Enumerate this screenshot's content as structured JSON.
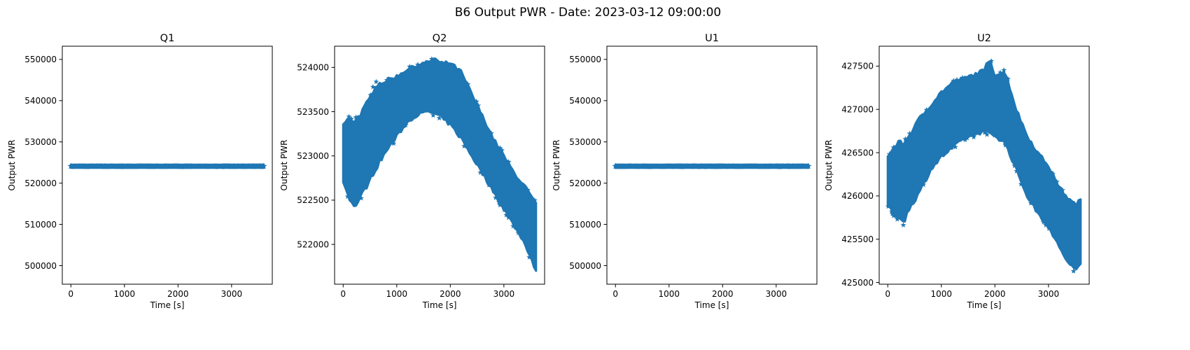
{
  "figure": {
    "suptitle": "B6 Output PWR - Date: 2023-03-12 09:00:00",
    "accent_color": "#1f77b4"
  },
  "chart_data": [
    {
      "type": "scatter",
      "title": "Q1",
      "xlabel": "Time [s]",
      "ylabel": "Output PWR",
      "marker": "star",
      "xlim": [
        -160,
        3760
      ],
      "ylim": [
        495500,
        553200
      ],
      "xticks": [
        0,
        1000,
        2000,
        3000
      ],
      "yticks": [
        500000,
        510000,
        520000,
        530000,
        540000,
        550000
      ],
      "series": [
        {
          "x": [
            0,
            3600
          ],
          "y_low": [
            523700,
            523700
          ],
          "y_high": [
            524500,
            524500
          ]
        }
      ]
    },
    {
      "type": "scatter",
      "title": "Q2",
      "xlabel": "Time [s]",
      "ylabel": "Output PWR",
      "marker": "star",
      "xlim": [
        -160,
        3760
      ],
      "ylim": [
        521550,
        524240
      ],
      "xticks": [
        0,
        1000,
        2000,
        3000
      ],
      "yticks": [
        522000,
        522500,
        523000,
        523500,
        524000
      ],
      "series": [
        {
          "x": [
            0,
            100,
            200,
            300,
            400,
            500,
            600,
            800,
            1000,
            1200,
            1400,
            1600,
            1700,
            1800,
            2000,
            2200,
            2400,
            2600,
            2800,
            3000,
            3200,
            3400,
            3500,
            3600
          ],
          "y_low": [
            522700,
            522550,
            522420,
            522500,
            522620,
            522720,
            522850,
            523050,
            523220,
            523380,
            523470,
            523500,
            523480,
            523450,
            523350,
            523200,
            523000,
            522800,
            522600,
            522400,
            522200,
            522000,
            521850,
            521700
          ],
          "y_high": [
            523350,
            523420,
            523400,
            523450,
            523550,
            523650,
            523800,
            523850,
            523900,
            523980,
            524030,
            524060,
            524110,
            524050,
            524050,
            523950,
            523700,
            523450,
            523200,
            523000,
            522800,
            522650,
            522550,
            522450
          ]
        }
      ]
    },
    {
      "type": "scatter",
      "title": "U1",
      "xlabel": "Time [s]",
      "ylabel": "Output PWR",
      "marker": "star",
      "xlim": [
        -160,
        3760
      ],
      "ylim": [
        495500,
        553200
      ],
      "xticks": [
        0,
        1000,
        2000,
        3000
      ],
      "yticks": [
        500000,
        510000,
        520000,
        530000,
        540000,
        550000
      ],
      "series": [
        {
          "x": [
            0,
            3600
          ],
          "y_low": [
            523700,
            523700
          ],
          "y_high": [
            524500,
            524500
          ]
        }
      ]
    },
    {
      "type": "scatter",
      "title": "U2",
      "xlabel": "Time [s]",
      "ylabel": "Output PWR",
      "marker": "star",
      "xlim": [
        -160,
        3760
      ],
      "ylim": [
        424980,
        427730
      ],
      "xticks": [
        0,
        1000,
        2000,
        3000
      ],
      "yticks": [
        425000,
        425500,
        426000,
        426500,
        427000,
        427500
      ],
      "series": [
        {
          "x": [
            0,
            100,
            200,
            300,
            400,
            600,
            800,
            1000,
            1200,
            1400,
            1600,
            1800,
            1900,
            2000,
            2200,
            2400,
            2600,
            2800,
            3000,
            3200,
            3400,
            3500,
            3600
          ],
          "y_low": [
            425900,
            425800,
            425750,
            425700,
            425850,
            426050,
            426300,
            426450,
            426550,
            426650,
            426700,
            426750,
            426720,
            426700,
            426600,
            426300,
            426000,
            425800,
            425650,
            425400,
            425200,
            425150,
            425200
          ],
          "y_high": [
            426450,
            426550,
            426620,
            426600,
            426700,
            426900,
            427050,
            427200,
            427300,
            427350,
            427400,
            427450,
            427600,
            427400,
            427420,
            427000,
            426700,
            426500,
            426350,
            426100,
            425950,
            425900,
            425950
          ]
        }
      ]
    }
  ]
}
